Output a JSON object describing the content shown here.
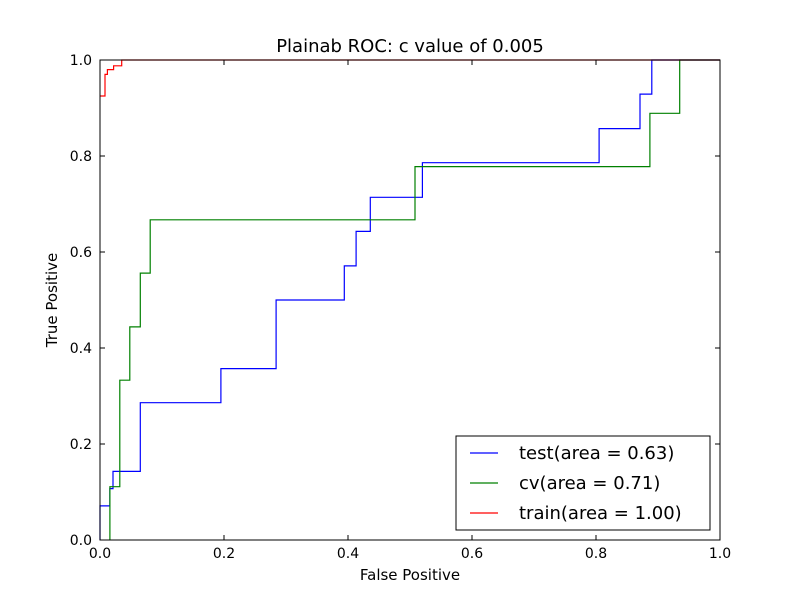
{
  "chart_data": {
    "type": "line",
    "title": "Plainab ROC: c value of 0.005",
    "xlabel": "False Positive",
    "ylabel": "True Positive",
    "xlim": [
      0.0,
      1.0
    ],
    "ylim": [
      0.0,
      1.0
    ],
    "xticks": [
      "0.0",
      "0.2",
      "0.4",
      "0.6",
      "0.8",
      "1.0"
    ],
    "yticks": [
      "0.0",
      "0.2",
      "0.4",
      "0.6",
      "0.8",
      "1.0"
    ],
    "grid": false,
    "legend_position": "lower-right",
    "series": [
      {
        "name": "test(area = 0.63)",
        "color": "#0000ff",
        "x": [
          0.0,
          0.0,
          0.016,
          0.016,
          0.021,
          0.021,
          0.065,
          0.065,
          0.195,
          0.195,
          0.284,
          0.284,
          0.394,
          0.394,
          0.413,
          0.413,
          0.436,
          0.436,
          0.52,
          0.52,
          0.805,
          0.805,
          0.871,
          0.871,
          0.89,
          0.89,
          1.0
        ],
        "y": [
          0.0,
          0.071,
          0.071,
          0.107,
          0.107,
          0.143,
          0.143,
          0.286,
          0.286,
          0.357,
          0.357,
          0.5,
          0.5,
          0.571,
          0.571,
          0.643,
          0.643,
          0.714,
          0.714,
          0.786,
          0.786,
          0.857,
          0.857,
          0.929,
          0.929,
          1.0,
          1.0
        ]
      },
      {
        "name": "cv(area = 0.71)",
        "color": "#008000",
        "x": [
          0.016,
          0.016,
          0.032,
          0.032,
          0.048,
          0.048,
          0.065,
          0.065,
          0.081,
          0.081,
          0.508,
          0.508,
          0.887,
          0.887,
          0.935,
          0.935,
          1.0
        ],
        "y": [
          0.0,
          0.111,
          0.111,
          0.333,
          0.333,
          0.444,
          0.444,
          0.556,
          0.556,
          0.667,
          0.667,
          0.778,
          0.778,
          0.889,
          0.889,
          1.0,
          1.0
        ]
      },
      {
        "name": "train(area = 1.00)",
        "color": "#ff0000",
        "x": [
          0.0,
          0.0,
          0.008,
          0.008,
          0.012,
          0.012,
          0.022,
          0.022,
          0.035,
          0.035,
          1.0
        ],
        "y": [
          0.925,
          0.925,
          0.925,
          0.97,
          0.97,
          0.98,
          0.98,
          0.988,
          0.988,
          1.0,
          1.0
        ]
      }
    ]
  }
}
